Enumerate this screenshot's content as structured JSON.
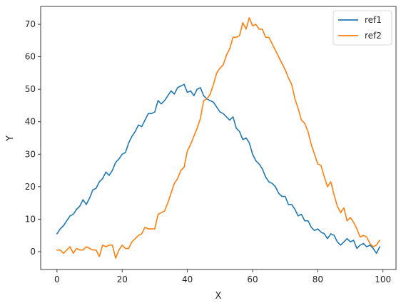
{
  "chart_data": {
    "type": "line",
    "title": "",
    "xlabel": "X",
    "ylabel": "Y",
    "xlim": [
      -5,
      104
    ],
    "ylim": [
      -5.5,
      75.5
    ],
    "xticks": [
      0,
      20,
      40,
      60,
      80,
      100
    ],
    "yticks": [
      0,
      10,
      20,
      30,
      40,
      50,
      60,
      70
    ],
    "grid": false,
    "legend_position": "top-right",
    "x": [
      0,
      1,
      2,
      3,
      4,
      5,
      6,
      7,
      8,
      9,
      10,
      11,
      12,
      13,
      14,
      15,
      16,
      17,
      18,
      19,
      20,
      21,
      22,
      23,
      24,
      25,
      26,
      27,
      28,
      29,
      30,
      31,
      32,
      33,
      34,
      35,
      36,
      37,
      38,
      39,
      40,
      41,
      42,
      43,
      44,
      45,
      46,
      47,
      48,
      49,
      50,
      51,
      52,
      53,
      54,
      55,
      56,
      57,
      58,
      59,
      60,
      61,
      62,
      63,
      64,
      65,
      66,
      67,
      68,
      69,
      70,
      71,
      72,
      73,
      74,
      75,
      76,
      77,
      78,
      79,
      80,
      81,
      82,
      83,
      84,
      85,
      86,
      87,
      88,
      89,
      90,
      91,
      92,
      93,
      94,
      95,
      96,
      97,
      98,
      99
    ],
    "series": [
      {
        "name": "ref1",
        "color": "#1f77b4",
        "values": [
          5.5,
          7,
          8,
          9.5,
          11,
          11.5,
          13,
          14,
          16,
          14.5,
          16.5,
          19,
          19.5,
          21.5,
          22.5,
          24.5,
          23.5,
          25,
          27.5,
          28.5,
          30,
          30.5,
          33.5,
          35.5,
          37,
          39,
          38.5,
          40.5,
          42.5,
          42.5,
          43,
          46.5,
          45.5,
          46.5,
          48,
          49.5,
          48.5,
          50.5,
          51,
          51.5,
          49,
          49.5,
          48,
          50,
          50.5,
          48,
          47,
          46.5,
          46,
          44.5,
          43,
          42.5,
          41.5,
          40.5,
          41.5,
          38,
          37,
          34.5,
          35,
          33.5,
          30,
          28,
          27,
          25.5,
          23,
          21.5,
          21,
          20,
          18,
          17,
          17,
          14.5,
          14.5,
          13,
          11,
          11.5,
          9.5,
          9.5,
          7.5,
          6.5,
          7,
          6,
          5.5,
          4,
          5.5,
          5,
          3,
          2,
          3,
          4,
          3,
          3.5,
          1,
          2,
          2.5,
          1.5,
          2,
          1,
          -0.5,
          1.5
        ]
      },
      {
        "name": "ref2",
        "color": "#ff7f0e",
        "values": [
          0.5,
          0.5,
          -0.5,
          0.5,
          1.5,
          -0.5,
          1,
          0.5,
          0.5,
          1.5,
          1,
          0.5,
          0.5,
          -1.5,
          2,
          1.5,
          2,
          2,
          -2,
          0.5,
          2,
          1,
          1,
          3,
          4,
          5,
          5.5,
          7.5,
          7,
          7,
          7,
          11.5,
          12,
          12.5,
          15,
          18,
          21,
          22.5,
          25,
          26,
          31,
          33,
          35.5,
          38,
          41,
          46.5,
          47,
          48.5,
          51.5,
          55,
          56.5,
          57.5,
          60.5,
          62.5,
          66,
          66,
          66.5,
          70.5,
          68.5,
          72,
          69.5,
          70,
          68.5,
          68.5,
          66,
          66,
          64,
          62,
          60,
          58,
          56,
          53.5,
          51.5,
          47,
          44,
          40.5,
          39.5,
          37,
          33,
          30,
          27,
          26.5,
          23,
          20,
          21.5,
          17.5,
          14,
          12,
          13.5,
          9.5,
          10.5,
          9,
          7,
          4.5,
          5,
          4.5,
          2.5,
          1.5,
          2,
          3.5
        ]
      }
    ]
  }
}
